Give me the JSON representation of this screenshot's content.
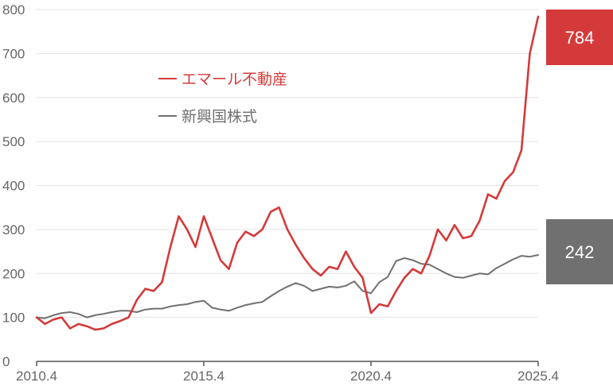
{
  "chart_data": {
    "type": "line",
    "xlim": [
      2010.25,
      2025.25
    ],
    "ylim": [
      0,
      800
    ],
    "y_ticks": [
      0,
      100,
      200,
      300,
      400,
      500,
      600,
      700,
      800
    ],
    "x_ticks": [
      {
        "value": 2010.25,
        "label": "2010.4"
      },
      {
        "value": 2015.25,
        "label": "2015.4"
      },
      {
        "value": 2020.25,
        "label": "2020.4"
      },
      {
        "value": 2025.25,
        "label": "2025.4"
      }
    ],
    "grid": true,
    "legend_position": "top-left",
    "series": [
      {
        "name": "エマール不動産",
        "color": "#d43a3a",
        "end_label": "784",
        "x": [
          2010.25,
          2010.5,
          2010.75,
          2011.0,
          2011.25,
          2011.5,
          2011.75,
          2012.0,
          2012.25,
          2012.5,
          2012.75,
          2013.0,
          2013.25,
          2013.5,
          2013.75,
          2014.0,
          2014.25,
          2014.5,
          2014.75,
          2015.0,
          2015.25,
          2015.5,
          2015.75,
          2016.0,
          2016.25,
          2016.5,
          2016.75,
          2017.0,
          2017.25,
          2017.5,
          2017.75,
          2018.0,
          2018.25,
          2018.5,
          2018.75,
          2019.0,
          2019.25,
          2019.5,
          2019.75,
          2020.0,
          2020.25,
          2020.5,
          2020.75,
          2021.0,
          2021.25,
          2021.5,
          2021.75,
          2022.0,
          2022.25,
          2022.5,
          2022.75,
          2023.0,
          2023.25,
          2023.5,
          2023.75,
          2024.0,
          2024.25,
          2024.5,
          2024.75,
          2025.0,
          2025.25
        ],
        "y": [
          100,
          85,
          95,
          100,
          75,
          85,
          80,
          72,
          75,
          85,
          92,
          100,
          140,
          165,
          160,
          180,
          260,
          330,
          300,
          260,
          330,
          280,
          230,
          210,
          270,
          295,
          285,
          300,
          340,
          350,
          300,
          265,
          235,
          210,
          195,
          215,
          210,
          250,
          215,
          190,
          110,
          130,
          125,
          160,
          190,
          210,
          200,
          240,
          300,
          275,
          310,
          280,
          285,
          320,
          380,
          370,
          410,
          430,
          480,
          700,
          784
        ]
      },
      {
        "name": "新興国株式",
        "color": "#707070",
        "end_label": "242",
        "x": [
          2010.25,
          2010.5,
          2010.75,
          2011.0,
          2011.25,
          2011.5,
          2011.75,
          2012.0,
          2012.25,
          2012.5,
          2012.75,
          2013.0,
          2013.25,
          2013.5,
          2013.75,
          2014.0,
          2014.25,
          2014.5,
          2014.75,
          2015.0,
          2015.25,
          2015.5,
          2015.75,
          2016.0,
          2016.25,
          2016.5,
          2016.75,
          2017.0,
          2017.25,
          2017.5,
          2017.75,
          2018.0,
          2018.25,
          2018.5,
          2018.75,
          2019.0,
          2019.25,
          2019.5,
          2019.75,
          2020.0,
          2020.25,
          2020.5,
          2020.75,
          2021.0,
          2021.25,
          2021.5,
          2021.75,
          2022.0,
          2022.25,
          2022.5,
          2022.75,
          2023.0,
          2023.25,
          2023.5,
          2023.75,
          2024.0,
          2024.25,
          2024.5,
          2024.75,
          2025.0,
          2025.25
        ],
        "y": [
          100,
          98,
          105,
          110,
          112,
          108,
          100,
          105,
          108,
          112,
          115,
          115,
          112,
          118,
          120,
          120,
          125,
          128,
          130,
          135,
          138,
          122,
          118,
          115,
          122,
          128,
          132,
          135,
          148,
          160,
          170,
          178,
          172,
          160,
          165,
          170,
          168,
          172,
          182,
          160,
          155,
          180,
          192,
          228,
          235,
          230,
          222,
          220,
          210,
          200,
          192,
          190,
          195,
          200,
          198,
          212,
          222,
          232,
          240,
          238,
          242
        ]
      }
    ]
  }
}
